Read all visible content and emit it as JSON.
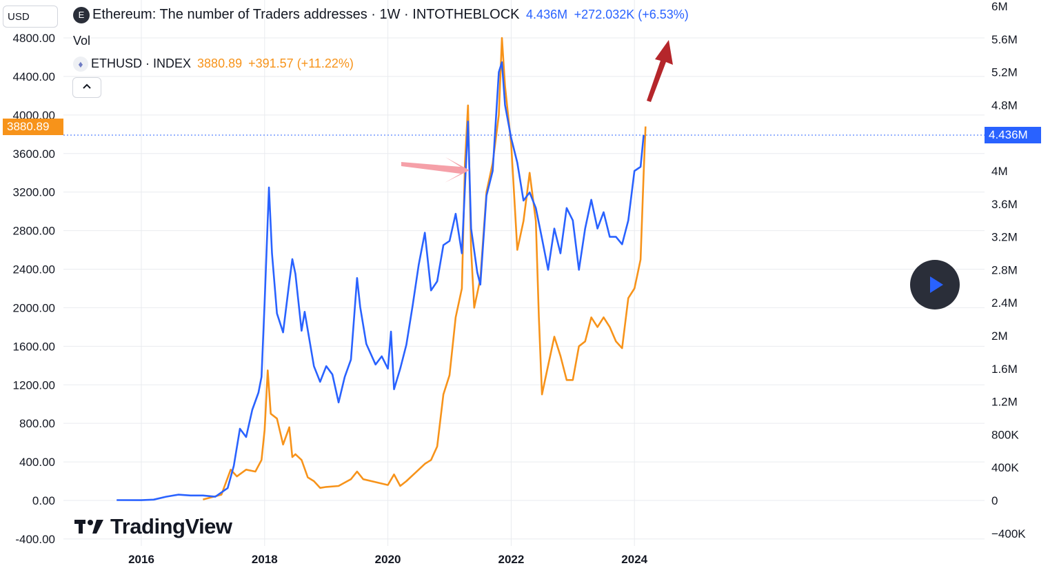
{
  "header": {
    "currency_label": "USD",
    "main_title": "Ethereum: The number of Traders addresses · 1W · INTOTHEBLOCK",
    "main_value": "4.436M",
    "main_change": "+272.032K (+6.53%)",
    "vol_label": "Vol",
    "secondary_title": "ETHUSD · INDEX",
    "secondary_value": "3880.89",
    "secondary_change": "+391.57 (+11.22%)",
    "collapse_icon": "chevron-up-icon",
    "logo_letter": "E",
    "eth_icon": "ethereum-icon"
  },
  "badges": {
    "left_price": "3880.89",
    "right_value": "4.436M"
  },
  "watermark": "TradingView",
  "colors": {
    "blue": "#2962ff",
    "orange": "#f7931a",
    "red_arrow": "#b5262b",
    "pink_arrow": "#f5a0a8",
    "play_bg": "#2a2e39"
  },
  "chart_data": {
    "type": "line",
    "left_axis": {
      "label": "USD",
      "ticks": [
        "4800.00",
        "4400.00",
        "4000.00",
        "3600.00",
        "3200.00",
        "2800.00",
        "2400.00",
        "2000.00",
        "1600.00",
        "1200.00",
        "800.00",
        "400.00",
        "0.00",
        "-400.00"
      ],
      "range": [
        -400,
        4800
      ]
    },
    "right_axis": {
      "ticks": [
        "6M",
        "5.6M",
        "5.2M",
        "4.8M",
        "4M",
        "3.6M",
        "3.2M",
        "2.8M",
        "2.4M",
        "2M",
        "1.6M",
        "1.2M",
        "800K",
        "400K",
        "0",
        "−400K"
      ],
      "range": [
        -400000,
        6000000
      ]
    },
    "x_axis": {
      "ticks": [
        "2016",
        "2018",
        "2020",
        "2022",
        "2024"
      ],
      "range": [
        2015.0,
        2026.5
      ]
    },
    "series": [
      {
        "name": "Ethereum: The number of Traders addresses",
        "axis": "right",
        "color": "#2962ff",
        "points": [
          [
            2015.6,
            4000
          ],
          [
            2016.0,
            3000
          ],
          [
            2016.2,
            10000
          ],
          [
            2016.4,
            45000
          ],
          [
            2016.6,
            70000
          ],
          [
            2016.8,
            60000
          ],
          [
            2017.0,
            60000
          ],
          [
            2017.2,
            45000
          ],
          [
            2017.4,
            150000
          ],
          [
            2017.5,
            420000
          ],
          [
            2017.6,
            870000
          ],
          [
            2017.7,
            770000
          ],
          [
            2017.8,
            1100000
          ],
          [
            2017.9,
            1310000
          ],
          [
            2017.95,
            1500000
          ],
          [
            2018.0,
            2400000
          ],
          [
            2018.07,
            3800000
          ],
          [
            2018.12,
            3000000
          ],
          [
            2018.2,
            2270000
          ],
          [
            2018.3,
            2040000
          ],
          [
            2018.4,
            2650000
          ],
          [
            2018.45,
            2930000
          ],
          [
            2018.5,
            2750000
          ],
          [
            2018.6,
            2060000
          ],
          [
            2018.65,
            2290000
          ],
          [
            2018.8,
            1630000
          ],
          [
            2018.9,
            1440000
          ],
          [
            2019.0,
            1630000
          ],
          [
            2019.1,
            1530000
          ],
          [
            2019.2,
            1190000
          ],
          [
            2019.3,
            1500000
          ],
          [
            2019.4,
            1710000
          ],
          [
            2019.5,
            2700000
          ],
          [
            2019.55,
            2350000
          ],
          [
            2019.65,
            1900000
          ],
          [
            2019.8,
            1650000
          ],
          [
            2019.9,
            1750000
          ],
          [
            2020.0,
            1600000
          ],
          [
            2020.05,
            2050000
          ],
          [
            2020.1,
            1350000
          ],
          [
            2020.2,
            1600000
          ],
          [
            2020.3,
            1890000
          ],
          [
            2020.4,
            2360000
          ],
          [
            2020.5,
            2860000
          ],
          [
            2020.6,
            3250000
          ],
          [
            2020.7,
            2550000
          ],
          [
            2020.8,
            2660000
          ],
          [
            2020.9,
            3100000
          ],
          [
            2021.0,
            3150000
          ],
          [
            2021.1,
            3480000
          ],
          [
            2021.2,
            3000000
          ],
          [
            2021.3,
            4600000
          ],
          [
            2021.35,
            3300000
          ],
          [
            2021.45,
            2770000
          ],
          [
            2021.5,
            2620000
          ],
          [
            2021.6,
            3700000
          ],
          [
            2021.7,
            4000000
          ],
          [
            2021.8,
            5200000
          ],
          [
            2021.85,
            5320000
          ],
          [
            2021.9,
            4800000
          ],
          [
            2022.0,
            4400000
          ],
          [
            2022.1,
            4100000
          ],
          [
            2022.2,
            3640000
          ],
          [
            2022.3,
            3740000
          ],
          [
            2022.4,
            3550000
          ],
          [
            2022.5,
            3180000
          ],
          [
            2022.6,
            2800000
          ],
          [
            2022.7,
            3300000
          ],
          [
            2022.8,
            3000000
          ],
          [
            2022.9,
            3550000
          ],
          [
            2023.0,
            3400000
          ],
          [
            2023.1,
            2800000
          ],
          [
            2023.2,
            3300000
          ],
          [
            2023.3,
            3650000
          ],
          [
            2023.4,
            3300000
          ],
          [
            2023.5,
            3500000
          ],
          [
            2023.6,
            3200000
          ],
          [
            2023.7,
            3200000
          ],
          [
            2023.8,
            3110000
          ],
          [
            2023.9,
            3400000
          ],
          [
            2024.0,
            4000000
          ],
          [
            2024.1,
            4050000
          ],
          [
            2024.15,
            4436000
          ]
        ]
      },
      {
        "name": "ETHUSD · INDEX",
        "axis": "left",
        "color": "#f7931a",
        "points": [
          [
            2017.0,
            10
          ],
          [
            2017.3,
            60
          ],
          [
            2017.45,
            320
          ],
          [
            2017.55,
            250
          ],
          [
            2017.7,
            320
          ],
          [
            2017.85,
            300
          ],
          [
            2017.95,
            420
          ],
          [
            2018.0,
            730
          ],
          [
            2018.05,
            1350
          ],
          [
            2018.1,
            900
          ],
          [
            2018.2,
            850
          ],
          [
            2018.3,
            580
          ],
          [
            2018.4,
            760
          ],
          [
            2018.45,
            450
          ],
          [
            2018.5,
            480
          ],
          [
            2018.6,
            420
          ],
          [
            2018.7,
            240
          ],
          [
            2018.8,
            200
          ],
          [
            2018.9,
            130
          ],
          [
            2019.0,
            140
          ],
          [
            2019.2,
            150
          ],
          [
            2019.4,
            220
          ],
          [
            2019.5,
            300
          ],
          [
            2019.6,
            220
          ],
          [
            2019.8,
            190
          ],
          [
            2020.0,
            160
          ],
          [
            2020.1,
            270
          ],
          [
            2020.2,
            150
          ],
          [
            2020.3,
            200
          ],
          [
            2020.5,
            320
          ],
          [
            2020.6,
            380
          ],
          [
            2020.7,
            420
          ],
          [
            2020.8,
            560
          ],
          [
            2020.9,
            1100
          ],
          [
            2021.0,
            1300
          ],
          [
            2021.1,
            1900
          ],
          [
            2021.2,
            2200
          ],
          [
            2021.25,
            3500
          ],
          [
            2021.3,
            4100
          ],
          [
            2021.35,
            2600
          ],
          [
            2021.4,
            2000
          ],
          [
            2021.5,
            2300
          ],
          [
            2021.6,
            3200
          ],
          [
            2021.7,
            3500
          ],
          [
            2021.8,
            4000
          ],
          [
            2021.85,
            4800
          ],
          [
            2021.9,
            4300
          ],
          [
            2022.0,
            3700
          ],
          [
            2022.05,
            3150
          ],
          [
            2022.1,
            2600
          ],
          [
            2022.2,
            2900
          ],
          [
            2022.3,
            3400
          ],
          [
            2022.4,
            2900
          ],
          [
            2022.45,
            1900
          ],
          [
            2022.5,
            1100
          ],
          [
            2022.6,
            1400
          ],
          [
            2022.7,
            1700
          ],
          [
            2022.8,
            1500
          ],
          [
            2022.9,
            1250
          ],
          [
            2023.0,
            1250
          ],
          [
            2023.1,
            1600
          ],
          [
            2023.2,
            1650
          ],
          [
            2023.3,
            1900
          ],
          [
            2023.4,
            1800
          ],
          [
            2023.5,
            1900
          ],
          [
            2023.6,
            1800
          ],
          [
            2023.7,
            1650
          ],
          [
            2023.8,
            1580
          ],
          [
            2023.9,
            2100
          ],
          [
            2024.0,
            2200
          ],
          [
            2024.05,
            2350
          ],
          [
            2024.1,
            2500
          ],
          [
            2024.15,
            3400
          ],
          [
            2024.18,
            3880.89
          ]
        ]
      }
    ]
  }
}
